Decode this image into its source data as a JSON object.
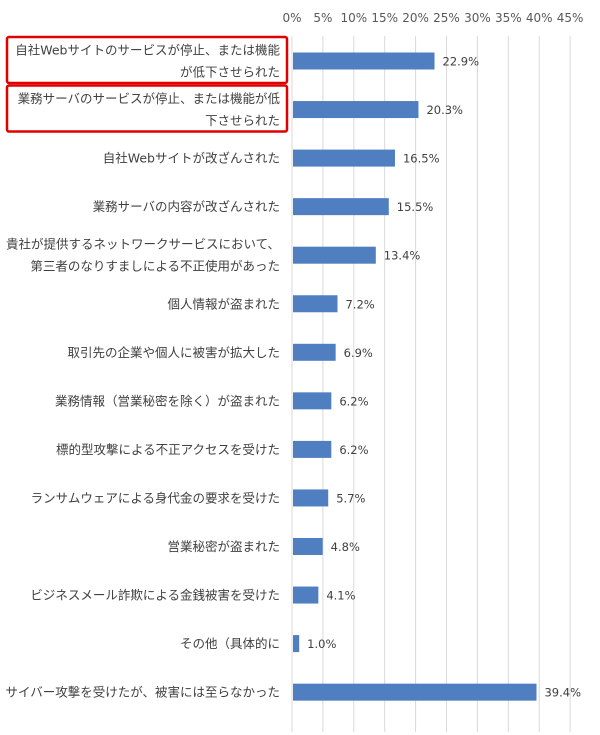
{
  "chart_data": {
    "type": "bar",
    "orientation": "horizontal",
    "title": "",
    "xlabel": "",
    "ylabel": "",
    "xlim": [
      0,
      45
    ],
    "xticks": [
      "0%",
      "5%",
      "10%",
      "15%",
      "20%",
      "25%",
      "30%",
      "35%",
      "40%",
      "45%"
    ],
    "grid": "vertical",
    "categories": [
      [
        "自社Webサイトのサービスが停止、または機能",
        "が低下させられた"
      ],
      [
        "業務サーバのサービスが停止、または機能が低",
        "下させられた"
      ],
      [
        "自社Webサイトが改ざんされた"
      ],
      [
        "業務サーバの内容が改ざんされた"
      ],
      [
        "貴社が提供するネットワークサービスにおいて、",
        "第三者のなりすましによる不正使用があった"
      ],
      [
        "個人情報が盗まれた"
      ],
      [
        "取引先の企業や個人に被害が拡大した"
      ],
      [
        "業務情報（営業秘密を除く）が盗まれた"
      ],
      [
        "標的型攻撃による不正アクセスを受けた"
      ],
      [
        "ランサムウェアによる身代金の要求を受けた"
      ],
      [
        "営業秘密が盗まれた"
      ],
      [
        "ビジネスメール詐欺による金銭被害を受けた"
      ],
      [
        "その他（具体的に"
      ],
      [
        "サイバー攻撃を受けたが、被害には至らなかった"
      ]
    ],
    "values": [
      22.9,
      20.3,
      16.5,
      15.5,
      13.4,
      7.2,
      6.9,
      6.2,
      6.2,
      5.7,
      4.8,
      4.1,
      1.0,
      39.4
    ],
    "value_labels": [
      "22.9%",
      "20.3%",
      "16.5%",
      "15.5%",
      "13.4%",
      "7.2%",
      "6.9%",
      "6.2%",
      "6.2%",
      "5.7%",
      "4.8%",
      "4.1%",
      "1.0%",
      "39.4%"
    ],
    "highlighted_categories": [
      0,
      1
    ],
    "colors": {
      "bar": "#4f7fc0",
      "highlight_box": "#e00000",
      "grid": "#d9d9d9"
    }
  }
}
